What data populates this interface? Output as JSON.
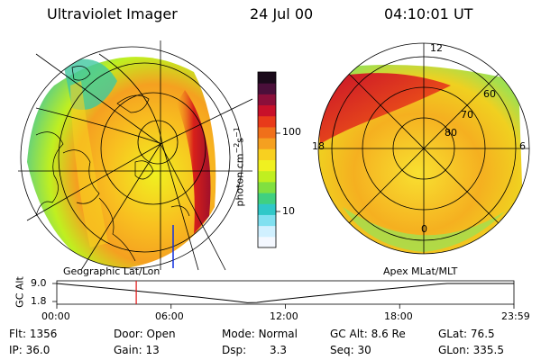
{
  "header": {
    "instrument": "Ultraviolet Imager",
    "date": "24 Jul 00",
    "time": "04:10:01 UT"
  },
  "colorbar": {
    "unit_label": "photon cm",
    "unit_sup1": "−2",
    "unit_mid": "s",
    "unit_sup2": "−1",
    "ticks": [
      "100",
      "10"
    ],
    "colors": [
      "#1a0a1a",
      "#4a0f3a",
      "#8b0f3a",
      "#c8102a",
      "#e83a1a",
      "#f0701a",
      "#f5a020",
      "#f8d020",
      "#f0f020",
      "#c0ef20",
      "#80e040",
      "#40d080",
      "#30c8c8",
      "#80e0f0",
      "#d0f0ff",
      "#f4f8ff"
    ]
  },
  "left_map": {
    "caption": "Geographic Lat/Lon"
  },
  "right_map": {
    "caption": "Apex MLat/MLT",
    "mlt_labels": {
      "top": "12",
      "left": "18",
      "right": "6",
      "bottom": "0"
    },
    "mlat_labels": [
      "60",
      "70",
      "80"
    ]
  },
  "timeline": {
    "axis_label": "GC Alt",
    "y_ticks": [
      "9.0",
      "1.8"
    ],
    "x_ticks": [
      "00:00",
      "06:00",
      "12:00",
      "18:00",
      "23:59"
    ],
    "marker_hour": 4.17,
    "marker_color": "#e01010"
  },
  "info": {
    "row1": [
      {
        "label": "Flt:",
        "value": "1356"
      },
      {
        "label": "Door:",
        "value": "Open"
      },
      {
        "label": "Mode:",
        "value": "Normal"
      },
      {
        "label": "GC Alt:",
        "value": "8.6 Re"
      },
      {
        "label": "GLat:",
        "value": "76.5"
      }
    ],
    "row2": [
      {
        "label": "IP:",
        "value": "36.0"
      },
      {
        "label": "Gain:",
        "value": "13"
      },
      {
        "label": "Dsp:",
        "value": "3.3"
      },
      {
        "label": "Seq:",
        "value": "30"
      },
      {
        "label": "GLon:",
        "value": "335.5"
      }
    ]
  }
}
